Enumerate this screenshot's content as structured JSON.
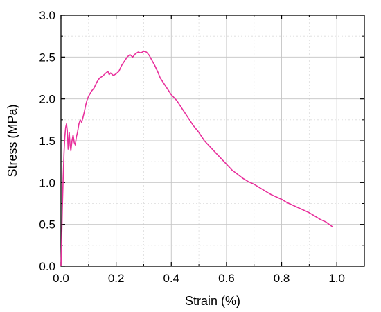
{
  "chart_data": {
    "type": "line",
    "xlabel": "Strain (%)",
    "ylabel": "Stress (MPa)",
    "xlim": [
      0.0,
      1.1
    ],
    "ylim": [
      0.0,
      3.0
    ],
    "x_ticks": [
      "0.0",
      "0.2",
      "0.4",
      "0.6",
      "0.8",
      "1.0"
    ],
    "x_tick_values": [
      0.0,
      0.2,
      0.4,
      0.6,
      0.8,
      1.0
    ],
    "y_ticks": [
      "0.0",
      "0.5",
      "1.0",
      "1.5",
      "2.0",
      "2.5",
      "3.0"
    ],
    "y_tick_values": [
      0.0,
      0.5,
      1.0,
      1.5,
      2.0,
      2.5,
      3.0
    ],
    "grid": true,
    "series": [
      {
        "color": "#e8309c",
        "points": [
          [
            0.0,
            0.0
          ],
          [
            0.002,
            0.25
          ],
          [
            0.005,
            0.7
          ],
          [
            0.008,
            1.05
          ],
          [
            0.011,
            1.35
          ],
          [
            0.014,
            1.55
          ],
          [
            0.017,
            1.66
          ],
          [
            0.02,
            1.7
          ],
          [
            0.023,
            1.62
          ],
          [
            0.026,
            1.4
          ],
          [
            0.03,
            1.6
          ],
          [
            0.033,
            1.45
          ],
          [
            0.036,
            1.38
          ],
          [
            0.04,
            1.5
          ],
          [
            0.044,
            1.57
          ],
          [
            0.048,
            1.48
          ],
          [
            0.052,
            1.45
          ],
          [
            0.056,
            1.55
          ],
          [
            0.06,
            1.6
          ],
          [
            0.065,
            1.7
          ],
          [
            0.07,
            1.75
          ],
          [
            0.075,
            1.72
          ],
          [
            0.08,
            1.78
          ],
          [
            0.085,
            1.85
          ],
          [
            0.09,
            1.93
          ],
          [
            0.095,
            1.99
          ],
          [
            0.1,
            2.03
          ],
          [
            0.11,
            2.09
          ],
          [
            0.12,
            2.13
          ],
          [
            0.13,
            2.2
          ],
          [
            0.14,
            2.25
          ],
          [
            0.15,
            2.27
          ],
          [
            0.16,
            2.3
          ],
          [
            0.17,
            2.33
          ],
          [
            0.175,
            2.29
          ],
          [
            0.18,
            2.31
          ],
          [
            0.19,
            2.28
          ],
          [
            0.2,
            2.3
          ],
          [
            0.21,
            2.33
          ],
          [
            0.22,
            2.4
          ],
          [
            0.23,
            2.45
          ],
          [
            0.24,
            2.5
          ],
          [
            0.25,
            2.53
          ],
          [
            0.26,
            2.5
          ],
          [
            0.27,
            2.54
          ],
          [
            0.28,
            2.56
          ],
          [
            0.29,
            2.55
          ],
          [
            0.3,
            2.57
          ],
          [
            0.31,
            2.56
          ],
          [
            0.32,
            2.52
          ],
          [
            0.33,
            2.46
          ],
          [
            0.34,
            2.4
          ],
          [
            0.35,
            2.33
          ],
          [
            0.36,
            2.25
          ],
          [
            0.38,
            2.15
          ],
          [
            0.4,
            2.05
          ],
          [
            0.42,
            1.98
          ],
          [
            0.44,
            1.88
          ],
          [
            0.46,
            1.78
          ],
          [
            0.48,
            1.68
          ],
          [
            0.5,
            1.6
          ],
          [
            0.52,
            1.5
          ],
          [
            0.54,
            1.43
          ],
          [
            0.56,
            1.36
          ],
          [
            0.58,
            1.29
          ],
          [
            0.6,
            1.22
          ],
          [
            0.62,
            1.15
          ],
          [
            0.64,
            1.1
          ],
          [
            0.66,
            1.05
          ],
          [
            0.68,
            1.01
          ],
          [
            0.7,
            0.98
          ],
          [
            0.72,
            0.94
          ],
          [
            0.74,
            0.9
          ],
          [
            0.76,
            0.86
          ],
          [
            0.78,
            0.83
          ],
          [
            0.8,
            0.8
          ],
          [
            0.82,
            0.76
          ],
          [
            0.84,
            0.73
          ],
          [
            0.86,
            0.7
          ],
          [
            0.88,
            0.67
          ],
          [
            0.9,
            0.64
          ],
          [
            0.92,
            0.6
          ],
          [
            0.94,
            0.56
          ],
          [
            0.96,
            0.53
          ],
          [
            0.985,
            0.47
          ]
        ]
      }
    ]
  }
}
